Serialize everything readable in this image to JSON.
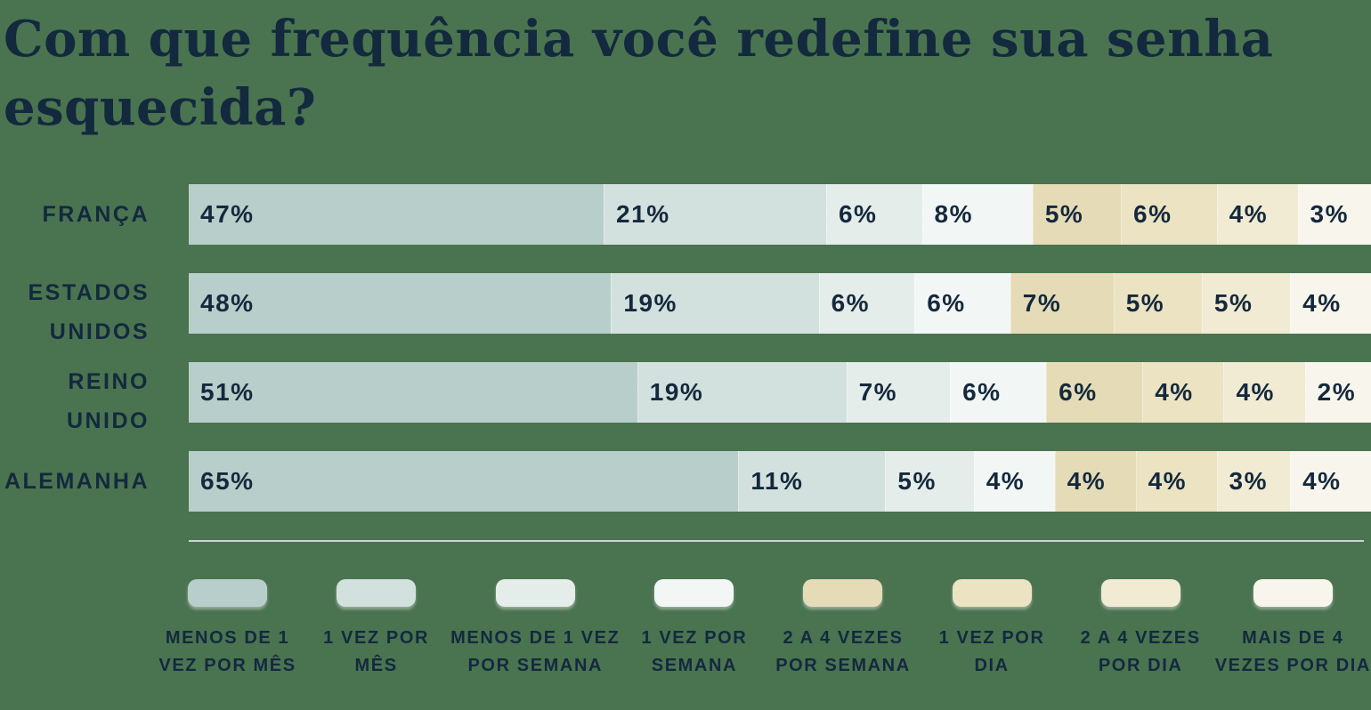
{
  "background_color": "#4a7350",
  "text_color": "#13293e",
  "divider_color": "#cdd3d6",
  "title": {
    "text": "Com que frequência você redefine sua senha esquecida?",
    "lines": [
      "Com que frequência você redefine sua senha",
      "esquecida?"
    ]
  },
  "chart_data": {
    "type": "bar",
    "stacked": true,
    "orientation": "horizontal",
    "title": "Com que frequência você redefine sua senha esquecida?",
    "value_suffix": "%",
    "unit": "percent",
    "xlim": [
      0,
      100
    ],
    "grid": false,
    "legend_position": "bottom",
    "palette": [
      "#b8cecb",
      "#d3e1de",
      "#e4edea",
      "#f2f7f6",
      "#e5dcb7",
      "#ebe3c2",
      "#f1ebd4",
      "#f8f6ec"
    ],
    "categories": [
      "FRANÇA",
      "ESTADOS UNIDOS",
      "REINO UNIDO",
      "ALEMANHA"
    ],
    "legend_labels": [
      "MENOS DE 1 VEZ POR MÊS",
      "1 VEZ POR MÊS",
      "MENOS DE 1 VEZ POR SEMANA",
      "1 VEZ POR SEMANA",
      "2 A 4 VEZES POR SEMANA",
      "1 VEZ POR DIA",
      "2 A 4 VEZES POR DIA",
      "MAIS DE 4 VEZES POR DIA"
    ],
    "legend": [
      {
        "lines": [
          "MENOS DE 1",
          "VEZ POR MÊS"
        ],
        "color": "#b8cecb"
      },
      {
        "lines": [
          "1 VEZ POR",
          "MÊS"
        ],
        "color": "#d3e1de"
      },
      {
        "lines": [
          "MENOS DE 1 VEZ",
          "POR SEMANA"
        ],
        "color": "#e4edea"
      },
      {
        "lines": [
          "1 VEZ POR",
          "SEMANA"
        ],
        "color": "#f2f7f6"
      },
      {
        "lines": [
          "2 A 4 VEZES",
          "POR SEMANA"
        ],
        "color": "#e5dcb7"
      },
      {
        "lines": [
          "1 VEZ POR",
          "DIA"
        ],
        "color": "#ebe3c2"
      },
      {
        "lines": [
          "2 A 4 VEZES",
          "POR DIA"
        ],
        "color": "#f1ebd4"
      },
      {
        "lines": [
          "MAIS DE 4",
          "VEZES POR DIA"
        ],
        "color": "#f8f6ec"
      }
    ],
    "rows": [
      {
        "label": "FRANÇA",
        "label_lines": [
          "FRANÇA"
        ],
        "values": [
          47,
          21,
          6,
          8,
          5,
          6,
          4,
          3
        ],
        "labels": [
          "47%",
          "21%",
          "6%",
          "8%",
          "5%",
          "6%",
          "4%",
          "3%"
        ]
      },
      {
        "label": "ESTADOS UNIDOS",
        "label_lines": [
          "ESTADOS",
          "UNIDOS"
        ],
        "values": [
          48,
          19,
          6,
          6,
          7,
          5,
          5,
          4
        ],
        "labels": [
          "48%",
          "19%",
          "6%",
          "6%",
          "7%",
          "5%",
          "5%",
          "4%"
        ]
      },
      {
        "label": "REINO UNIDO",
        "label_lines": [
          "REINO",
          "UNIDO"
        ],
        "values": [
          51,
          19,
          7,
          6,
          6,
          4,
          4,
          2
        ],
        "labels": [
          "51%",
          "19%",
          "7%",
          "6%",
          "6%",
          "4%",
          "4%",
          "2%"
        ]
      },
      {
        "label": "ALEMANHA",
        "label_lines": [
          "ALEMANHA"
        ],
        "values": [
          65,
          11,
          5,
          4,
          4,
          4,
          3,
          4
        ],
        "labels": [
          "65%",
          "11%",
          "5%",
          "4%",
          "4%",
          "4%",
          "3%",
          "4%"
        ]
      }
    ]
  }
}
